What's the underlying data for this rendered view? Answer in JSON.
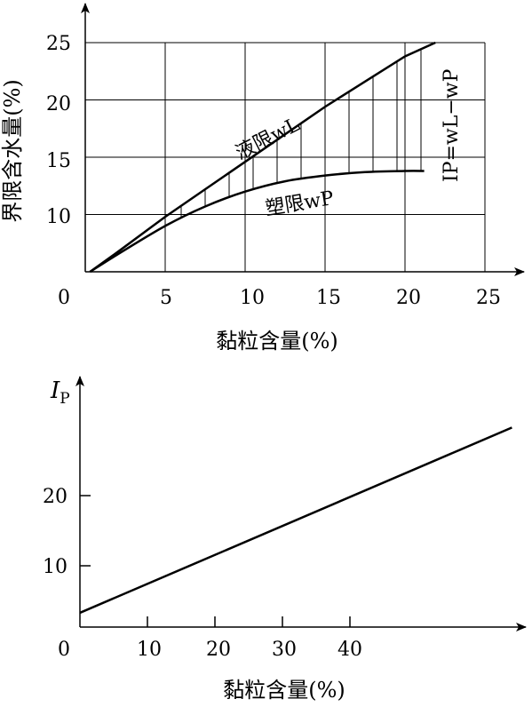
{
  "chart_data": [
    {
      "type": "line",
      "xlabel": "黏粒含量(%)",
      "ylabel": "界限含水量(%)",
      "xlim": [
        0,
        25
      ],
      "ylim": [
        5,
        25
      ],
      "xticks": [
        0,
        5,
        10,
        15,
        20,
        25
      ],
      "yticks": [
        10,
        15,
        20,
        25
      ],
      "xtick_labels": [
        "0",
        "5",
        "10",
        "15",
        "20",
        "25"
      ],
      "ytick_labels": [
        "10",
        "15",
        "20",
        "25"
      ],
      "grid": true,
      "series": [
        {
          "name": "液限wL",
          "x": [
            0.3,
            2,
            5,
            7.5,
            10,
            12.5,
            15,
            17.5,
            20,
            21.9
          ],
          "y": [
            5.0,
            6.7,
            9.8,
            12.2,
            14.6,
            17.0,
            19.4,
            21.6,
            23.8,
            25.0
          ]
        },
        {
          "name": "塑限wP",
          "x": [
            0.3,
            2,
            5,
            7.5,
            10,
            12.5,
            15,
            17.5,
            20,
            21.2
          ],
          "y": [
            5.0,
            6.5,
            9.0,
            10.7,
            12.0,
            12.9,
            13.4,
            13.7,
            13.8,
            13.8
          ]
        }
      ],
      "annotations": {
        "liquid_label": "液限wL",
        "plastic_label": "塑限wP",
        "index_label": "IP=wL−wP"
      }
    },
    {
      "type": "line",
      "xlabel": "黏粒含量(%)",
      "ylabel": "IP",
      "xlim": [
        0,
        68
      ],
      "ylim": [
        0,
        34
      ],
      "xticks": [
        0,
        10,
        20,
        30,
        40
      ],
      "yticks": [
        10,
        20
      ],
      "xtick_labels": [
        "0",
        "10",
        "20",
        "30",
        "40"
      ],
      "ytick_labels": [
        "10",
        "20"
      ],
      "grid": false,
      "series": [
        {
          "x": [
            0,
            64
          ],
          "y": [
            3.3,
            29.7
          ]
        }
      ]
    }
  ]
}
